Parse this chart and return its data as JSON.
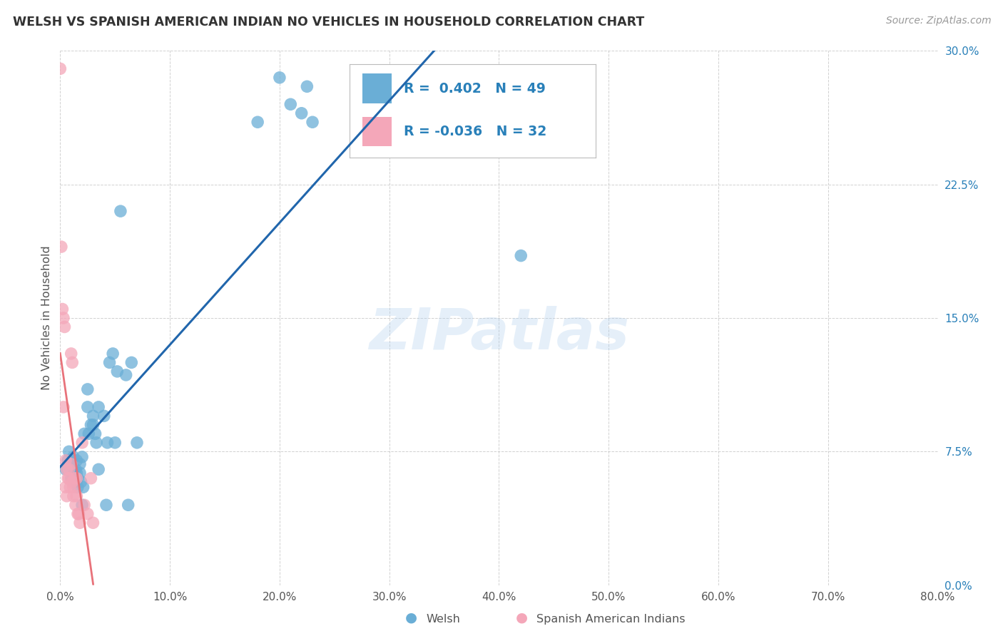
{
  "title": "WELSH VS SPANISH AMERICAN INDIAN NO VEHICLES IN HOUSEHOLD CORRELATION CHART",
  "source": "Source: ZipAtlas.com",
  "ylabel": "No Vehicles in Household",
  "xlim": [
    0.0,
    80.0
  ],
  "ylim": [
    0.0,
    30.0
  ],
  "xticks": [
    0.0,
    10.0,
    20.0,
    30.0,
    40.0,
    50.0,
    60.0,
    70.0,
    80.0
  ],
  "xticklabels": [
    "0.0%",
    "10.0%",
    "20.0%",
    "30.0%",
    "40.0%",
    "50.0%",
    "60.0%",
    "70.0%",
    "80.0%"
  ],
  "yticks": [
    0.0,
    7.5,
    15.0,
    22.5,
    30.0
  ],
  "yticklabels": [
    "0.0%",
    "7.5%",
    "15.0%",
    "22.5%",
    "30.0%"
  ],
  "welsh_color": "#6aaed6",
  "spanish_color": "#f4a7b9",
  "welsh_line_color": "#2166ac",
  "spanish_line_color": "#e8727a",
  "watermark": "ZIPatlas",
  "legend_R_welsh": "0.402",
  "legend_N_welsh": "49",
  "legend_R_spanish": "-0.036",
  "legend_N_spanish": "32",
  "legend_label_welsh": "Welsh",
  "legend_label_spanish": "Spanish American Indians",
  "welsh_x": [
    0.5,
    0.7,
    0.8,
    1.0,
    1.0,
    1.2,
    1.2,
    1.3,
    1.4,
    1.5,
    1.5,
    1.6,
    1.6,
    1.8,
    1.8,
    1.9,
    2.0,
    2.0,
    2.1,
    2.2,
    2.5,
    2.5,
    2.6,
    2.8,
    3.0,
    3.0,
    3.2,
    3.3,
    3.5,
    3.5,
    4.0,
    4.2,
    4.3,
    4.5,
    4.8,
    5.0,
    5.2,
    5.5,
    6.0,
    6.2,
    6.5,
    7.0,
    18.0,
    20.0,
    21.0,
    22.0,
    22.5,
    23.0,
    42.0
  ],
  "welsh_y": [
    6.5,
    7.0,
    7.5,
    6.0,
    6.8,
    6.2,
    7.2,
    5.8,
    6.5,
    6.3,
    7.0,
    6.0,
    5.5,
    6.8,
    6.3,
    5.8,
    7.2,
    4.5,
    5.5,
    8.5,
    10.0,
    11.0,
    8.5,
    9.0,
    9.0,
    9.5,
    8.5,
    8.0,
    10.0,
    6.5,
    9.5,
    4.5,
    8.0,
    12.5,
    13.0,
    8.0,
    12.0,
    21.0,
    11.8,
    4.5,
    12.5,
    8.0,
    26.0,
    28.5,
    27.0,
    26.5,
    28.0,
    26.0,
    18.5
  ],
  "spanish_x": [
    0.0,
    0.1,
    0.2,
    0.3,
    0.3,
    0.4,
    0.5,
    0.5,
    0.6,
    0.6,
    0.7,
    0.8,
    0.8,
    0.9,
    1.0,
    1.0,
    1.1,
    1.1,
    1.2,
    1.2,
    1.3,
    1.4,
    1.5,
    1.5,
    1.6,
    1.7,
    1.8,
    2.0,
    2.2,
    2.5,
    2.8,
    3.0
  ],
  "spanish_y": [
    29.0,
    19.0,
    15.5,
    15.0,
    10.0,
    14.5,
    7.0,
    5.5,
    6.5,
    5.0,
    6.0,
    6.5,
    6.0,
    5.5,
    13.0,
    6.8,
    12.5,
    5.8,
    5.5,
    5.0,
    6.0,
    4.5,
    6.0,
    5.0,
    4.0,
    4.0,
    3.5,
    8.0,
    4.5,
    4.0,
    6.0,
    3.5
  ],
  "background_color": "#ffffff",
  "grid_color": "#cccccc",
  "yaxis_color": "#2980b9",
  "title_color": "#333333",
  "source_color": "#999999"
}
